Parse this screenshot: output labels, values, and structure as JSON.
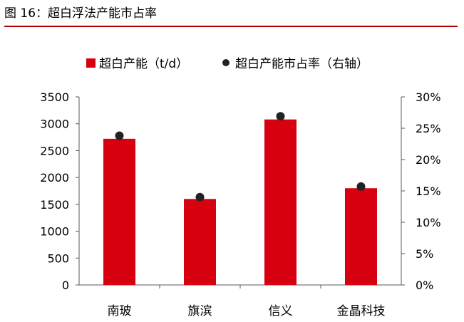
{
  "figure_title": "图 16：超白浮法产能市占率",
  "colors": {
    "accent": "#b30000",
    "bar": "#d6000f",
    "dot": "#222222",
    "axis": "#595959"
  },
  "chart_data": {
    "type": "bar",
    "categories": [
      "南玻",
      "旗滨",
      "信义",
      "金晶科技"
    ],
    "series": [
      {
        "name": "超白产能（t/d）",
        "type": "bar",
        "axis": "left",
        "values": [
          2720,
          1600,
          3080,
          1800
        ]
      },
      {
        "name": "超白产能市占率（右轴）",
        "type": "scatter",
        "axis": "right",
        "values": [
          23.8,
          14.0,
          26.9,
          15.7
        ]
      }
    ],
    "ylim": [
      0,
      3500
    ],
    "yticks": [
      "0",
      "500",
      "1000",
      "1500",
      "2000",
      "2500",
      "3000",
      "3500"
    ],
    "y2lim": [
      0,
      30
    ],
    "y2ticks": [
      "0%",
      "5%",
      "10%",
      "15%",
      "20%",
      "25%",
      "30%"
    ],
    "legend_position": "top",
    "grid": false
  }
}
